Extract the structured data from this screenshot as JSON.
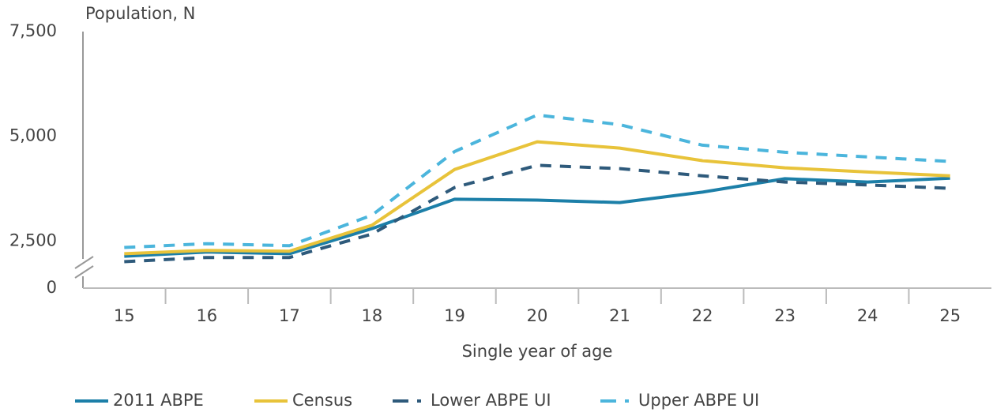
{
  "chart_data": {
    "type": "line",
    "y_axis_label": "Population, N",
    "x_axis_label": "Single year of age",
    "categories": [
      "15",
      "16",
      "17",
      "18",
      "19",
      "20",
      "21",
      "22",
      "23",
      "24",
      "25"
    ],
    "ylim": [
      0,
      7500
    ],
    "y_break": [
      0,
      1850
    ],
    "yticks": [
      0,
      {
        "value": 2500,
        "label": "2,500"
      },
      {
        "value": 5000,
        "label": "5,000"
      },
      {
        "value": 7500,
        "label": "7,500"
      }
    ],
    "grid": false,
    "legend": "bottom",
    "series": [
      {
        "name": "2011 ABPE",
        "color": "#1c7fa8",
        "line_style": "solid",
        "values": [
          2140,
          2240,
          2200,
          2800,
          3500,
          3480,
          3420,
          3670,
          3990,
          3910,
          4000
        ]
      },
      {
        "name": "Census",
        "color": "#e8c33a",
        "line_style": "solid",
        "values": [
          2200,
          2280,
          2260,
          2880,
          4210,
          4870,
          4720,
          4420,
          4250,
          4150,
          4060
        ]
      },
      {
        "name": "Lower ABPE UI",
        "color": "#2e5a7b",
        "line_style": "dashed",
        "values": [
          2010,
          2110,
          2110,
          2670,
          3780,
          4310,
          4230,
          4060,
          3910,
          3840,
          3760
        ]
      },
      {
        "name": "Upper ABPE UI",
        "color": "#4bb5dc",
        "line_style": "dashed",
        "values": [
          2350,
          2440,
          2390,
          3120,
          4640,
          5510,
          5280,
          4790,
          4620,
          4510,
          4400
        ]
      }
    ]
  }
}
